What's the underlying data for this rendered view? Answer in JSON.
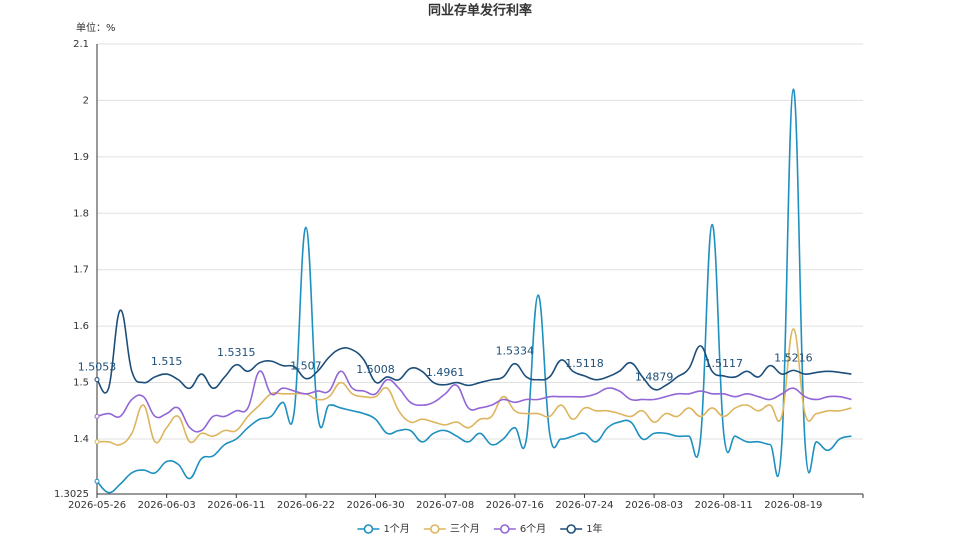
{
  "chart_data": {
    "type": "line",
    "title": "同业存单发行利率",
    "unit_label": "单位：%",
    "categories": [
      "2026-05-26",
      null,
      null,
      null,
      null,
      null,
      "2026-06-03",
      null,
      null,
      null,
      null,
      null,
      "2026-06-11",
      null,
      null,
      null,
      null,
      null,
      "2026-06-22",
      null,
      null,
      null,
      null,
      null,
      "2026-06-30",
      null,
      null,
      null,
      null,
      null,
      "2026-07-08",
      null,
      null,
      null,
      null,
      null,
      "2026-07-16",
      null,
      null,
      null,
      null,
      null,
      "2026-07-24",
      null,
      null,
      null,
      null,
      null,
      "2026-08-03",
      null,
      null,
      null,
      null,
      null,
      "2026-08-11",
      null,
      null,
      null,
      null,
      null,
      "2026-08-19",
      null,
      null,
      null,
      null,
      null
    ],
    "series": [
      {
        "name": "1个月",
        "color": "#1e90c0",
        "values": [
          1.325,
          1.305,
          1.32,
          1.34,
          1.345,
          1.34,
          1.36,
          1.355,
          1.33,
          1.365,
          1.37,
          1.39,
          1.4,
          1.42,
          1.435,
          1.44,
          1.465,
          1.45,
          1.775,
          1.445,
          1.46,
          1.455,
          1.45,
          1.445,
          1.435,
          1.41,
          1.415,
          1.415,
          1.395,
          1.41,
          1.415,
          1.405,
          1.395,
          1.41,
          1.39,
          1.4,
          1.42,
          1.4,
          1.655,
          1.41,
          1.4,
          1.405,
          1.41,
          1.395,
          1.42,
          1.43,
          1.43,
          1.4,
          1.41,
          1.41,
          1.405,
          1.405,
          1.4,
          1.78,
          1.41,
          1.405,
          1.395,
          1.395,
          1.39,
          1.39,
          2.02,
          1.395,
          1.395,
          1.38,
          1.4,
          1.405
        ]
      },
      {
        "name": "三个月",
        "color": "#deb55f",
        "values": [
          1.395,
          1.395,
          1.39,
          1.41,
          1.46,
          1.395,
          1.42,
          1.44,
          1.395,
          1.41,
          1.405,
          1.415,
          1.415,
          1.44,
          1.46,
          1.48,
          1.48,
          1.48,
          1.48,
          1.47,
          1.475,
          1.5,
          1.48,
          1.475,
          1.475,
          1.49,
          1.45,
          1.43,
          1.435,
          1.43,
          1.425,
          1.43,
          1.42,
          1.435,
          1.44,
          1.475,
          1.45,
          1.445,
          1.445,
          1.44,
          1.46,
          1.435,
          1.455,
          1.45,
          1.45,
          1.445,
          1.44,
          1.45,
          1.43,
          1.445,
          1.44,
          1.455,
          1.44,
          1.455,
          1.44,
          1.455,
          1.46,
          1.45,
          1.46,
          1.44,
          1.595,
          1.445,
          1.445,
          1.45,
          1.45,
          1.455
        ]
      },
      {
        "name": "6个月",
        "color": "#9266d6",
        "values": [
          1.44,
          1.445,
          1.44,
          1.47,
          1.475,
          1.44,
          1.445,
          1.455,
          1.42,
          1.415,
          1.44,
          1.44,
          1.45,
          1.455,
          1.52,
          1.48,
          1.49,
          1.485,
          1.48,
          1.485,
          1.485,
          1.52,
          1.49,
          1.485,
          1.48,
          1.505,
          1.49,
          1.465,
          1.46,
          1.465,
          1.48,
          1.495,
          1.455,
          1.455,
          1.46,
          1.47,
          1.465,
          1.47,
          1.47,
          1.475,
          1.475,
          1.475,
          1.475,
          1.48,
          1.49,
          1.485,
          1.47,
          1.47,
          1.47,
          1.475,
          1.48,
          1.48,
          1.485,
          1.48,
          1.48,
          1.475,
          1.48,
          1.475,
          1.47,
          1.48,
          1.49,
          1.475,
          1.47,
          1.475,
          1.475,
          1.47
        ]
      },
      {
        "name": "1年",
        "color": "#1d4f7a",
        "values": [
          1.5053,
          1.49,
          1.628,
          1.52,
          1.5,
          1.51,
          1.515,
          1.505,
          1.49,
          1.515,
          1.49,
          1.51,
          1.5315,
          1.52,
          1.535,
          1.538,
          1.53,
          1.528,
          1.507,
          1.52,
          1.545,
          1.56,
          1.558,
          1.54,
          1.5008,
          1.51,
          1.505,
          1.525,
          1.52,
          1.5,
          1.4961,
          1.5,
          1.495,
          1.5,
          1.505,
          1.51,
          1.5334,
          1.51,
          1.505,
          1.51,
          1.54,
          1.52,
          1.5118,
          1.505,
          1.51,
          1.52,
          1.535,
          1.51,
          1.4879,
          1.495,
          1.51,
          1.525,
          1.565,
          1.52,
          1.5117,
          1.51,
          1.52,
          1.51,
          1.53,
          1.515,
          1.5216,
          1.515,
          1.518,
          1.52,
          1.518,
          1.515
        ]
      }
    ],
    "ylim": [
      1.3025,
      2.1
    ],
    "yticks": [
      1.3025,
      1.4,
      1.5,
      1.6,
      1.7,
      1.8,
      1.9,
      2,
      2.1
    ],
    "grid": true
  }
}
